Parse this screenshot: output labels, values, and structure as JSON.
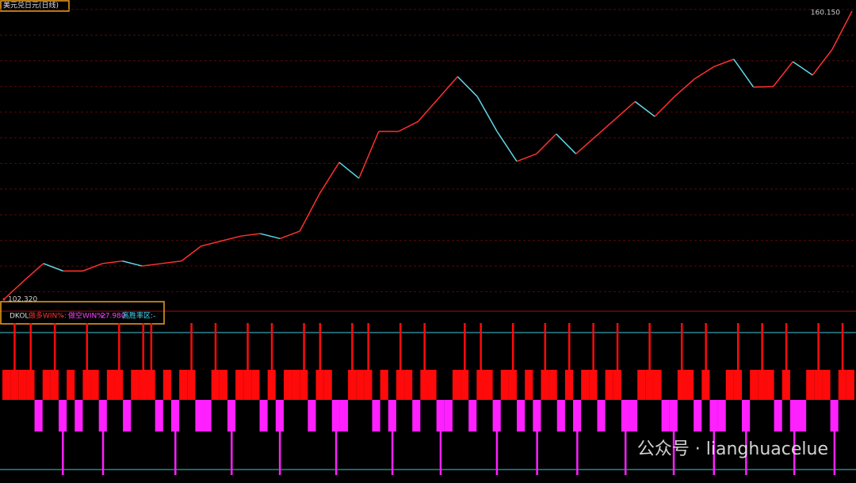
{
  "header": {
    "title": "美元兑日元(日线)"
  },
  "price_chart": {
    "high_label": {
      "value": 160.15,
      "label": "160.150"
    },
    "low_label": {
      "value": 102.32,
      "label": "102.320"
    },
    "values": [
      102.32,
      106,
      109.5,
      108,
      108,
      109.5,
      110,
      109,
      109.5,
      110,
      113,
      114,
      115,
      115.5,
      114.5,
      116,
      123.5,
      129.8,
      126.6,
      136,
      136,
      138,
      142.5,
      147,
      143,
      136,
      130,
      131.5,
      135.5,
      131.5,
      135,
      138.5,
      142,
      139,
      143,
      146.5,
      149,
      150.5,
      144.9,
      145,
      150,
      147.3,
      152.5,
      160.15
    ]
  },
  "indicator": {
    "name": "DKOL",
    "long_label": "做多WIN%:",
    "long_value": "-",
    "short_label": "做空WIN%:",
    "short_value": "27.980",
    "zone_label": "高胜率区:",
    "zone_value": "-",
    "values": [
      1,
      2,
      1,
      2,
      -1,
      1,
      2,
      -2,
      1,
      -1,
      2,
      1,
      -2,
      1,
      2,
      -1,
      1,
      2,
      2,
      -1,
      1,
      -2,
      1,
      2,
      -1,
      -1,
      2,
      1,
      -2,
      1,
      2,
      1,
      -1,
      2,
      -2,
      1,
      1,
      2,
      -1,
      2,
      1,
      -2,
      -1,
      2,
      1,
      2,
      -1,
      1,
      -2,
      2,
      1,
      -1,
      2,
      1,
      -2,
      -1,
      1,
      2,
      -1,
      2,
      1,
      -2,
      1,
      2,
      -1,
      1,
      -2,
      2,
      1,
      -1,
      2,
      -2,
      1,
      2,
      -1,
      1,
      2,
      -2,
      -1,
      1,
      2,
      1,
      -1,
      -2,
      2,
      1,
      -1,
      2,
      -2,
      -1,
      1,
      2,
      -2,
      1,
      2,
      1,
      -1,
      2,
      -2,
      -1,
      1,
      2,
      1,
      -2,
      2,
      1
    ]
  },
  "watermark": "公众号 · lianghuacelue"
}
